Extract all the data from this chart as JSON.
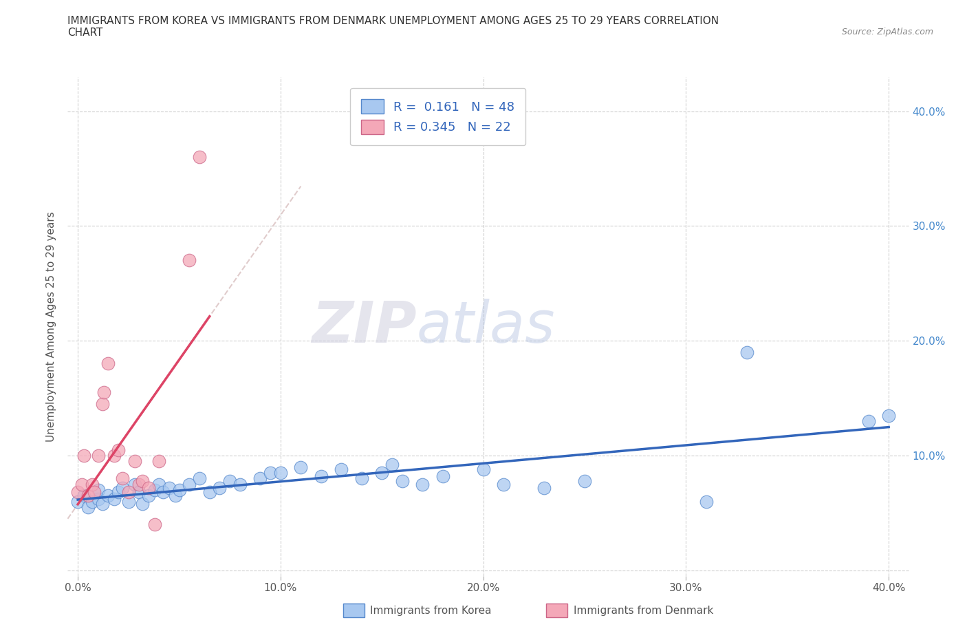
{
  "title_line1": "IMMIGRANTS FROM KOREA VS IMMIGRANTS FROM DENMARK UNEMPLOYMENT AMONG AGES 25 TO 29 YEARS CORRELATION",
  "title_line2": "CHART",
  "source_text": "Source: ZipAtlas.com",
  "ylabel": "Unemployment Among Ages 25 to 29 years",
  "xlim": [
    -0.005,
    0.41
  ],
  "ylim": [
    -0.005,
    0.43
  ],
  "xticks": [
    0.0,
    0.1,
    0.2,
    0.3,
    0.4
  ],
  "xticklabels": [
    "0.0%",
    "10.0%",
    "20.0%",
    "30.0%",
    "40.0%"
  ],
  "yticks": [
    0.0,
    0.1,
    0.2,
    0.3,
    0.4
  ],
  "yticklabels_left": [
    "",
    "",
    "",
    "",
    ""
  ],
  "yticklabels_right": [
    "",
    "10.0%",
    "20.0%",
    "30.0%",
    "40.0%"
  ],
  "korea_color": "#a8c8f0",
  "denmark_color": "#f4a8b8",
  "korea_edge": "#5588cc",
  "denmark_edge": "#cc6688",
  "trend_korea_color": "#3366bb",
  "trend_denmark_color": "#dd4466",
  "trend_denmark_dashed_color": "#d0a0b0",
  "R_korea": 0.161,
  "N_korea": 48,
  "R_denmark": 0.345,
  "N_denmark": 22,
  "korea_x": [
    0.0,
    0.003,
    0.005,
    0.007,
    0.01,
    0.01,
    0.012,
    0.015,
    0.018,
    0.02,
    0.022,
    0.025,
    0.028,
    0.03,
    0.032,
    0.035,
    0.038,
    0.04,
    0.042,
    0.045,
    0.048,
    0.05,
    0.055,
    0.06,
    0.065,
    0.07,
    0.075,
    0.08,
    0.09,
    0.095,
    0.1,
    0.11,
    0.12,
    0.13,
    0.14,
    0.15,
    0.155,
    0.16,
    0.17,
    0.18,
    0.2,
    0.21,
    0.23,
    0.25,
    0.31,
    0.33,
    0.39,
    0.4
  ],
  "korea_y": [
    0.06,
    0.065,
    0.055,
    0.06,
    0.062,
    0.07,
    0.058,
    0.065,
    0.062,
    0.068,
    0.072,
    0.06,
    0.075,
    0.068,
    0.058,
    0.065,
    0.07,
    0.075,
    0.068,
    0.072,
    0.065,
    0.07,
    0.075,
    0.08,
    0.068,
    0.072,
    0.078,
    0.075,
    0.08,
    0.085,
    0.085,
    0.09,
    0.082,
    0.088,
    0.08,
    0.085,
    0.092,
    0.078,
    0.075,
    0.082,
    0.088,
    0.075,
    0.072,
    0.078,
    0.06,
    0.19,
    0.13,
    0.135
  ],
  "denmark_x": [
    0.0,
    0.002,
    0.003,
    0.005,
    0.007,
    0.008,
    0.01,
    0.012,
    0.013,
    0.015,
    0.018,
    0.02,
    0.022,
    0.025,
    0.028,
    0.03,
    0.032,
    0.035,
    0.038,
    0.04,
    0.055,
    0.06
  ],
  "denmark_y": [
    0.068,
    0.075,
    0.1,
    0.065,
    0.075,
    0.068,
    0.1,
    0.145,
    0.155,
    0.18,
    0.1,
    0.105,
    0.08,
    0.068,
    0.095,
    0.075,
    0.078,
    0.072,
    0.04,
    0.095,
    0.27,
    0.36
  ],
  "watermark_zip": "ZIP",
  "watermark_atlas": "atlas",
  "bg_color": "#ffffff",
  "grid_color": "#d0d0d0",
  "legend_label_korea": "R =  0.161   N = 48",
  "legend_label_denmark": "R = 0.345   N = 22",
  "bottom_label_korea": "Immigrants from Korea",
  "bottom_label_denmark": "Immigrants from Denmark"
}
